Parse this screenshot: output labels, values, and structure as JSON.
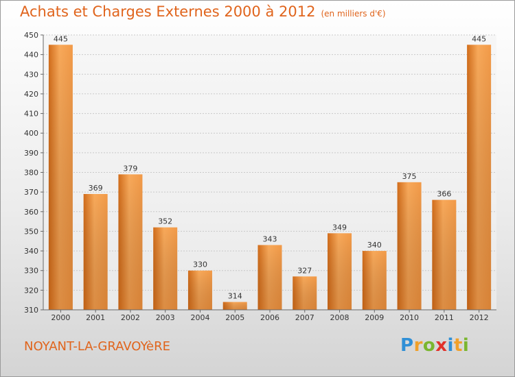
{
  "title": "Achats et Charges Externes 2000 à 2012",
  "subtitle": "(en milliers d'€)",
  "place": "NOYANT-LA-GRAVOYèRE",
  "brand": {
    "name": "Proxiti",
    "letters": [
      {
        "char": "P",
        "color": "#2f8fd6"
      },
      {
        "char": "r",
        "color": "#f0a02a"
      },
      {
        "char": "o",
        "color": "#7ab62f"
      },
      {
        "char": "x",
        "color": "#e2322a"
      },
      {
        "char": "i",
        "color": "#2f8fd6"
      },
      {
        "char": "t",
        "color": "#f0a02a"
      },
      {
        "char": "i",
        "color": "#7ab62f"
      }
    ]
  },
  "colors": {
    "accent": "#e0641c",
    "bar_light": "#f8a95a",
    "bar_dark": "#d26d1b",
    "grid": "#c8c8c8"
  },
  "chart_data": {
    "type": "bar",
    "categories": [
      "2000",
      "2001",
      "2002",
      "2003",
      "2004",
      "2005",
      "2006",
      "2007",
      "2008",
      "2009",
      "2010",
      "2011",
      "2012"
    ],
    "values": [
      445,
      369,
      379,
      352,
      330,
      314,
      343,
      327,
      349,
      340,
      375,
      366,
      445
    ],
    "ylim": [
      310,
      450
    ],
    "yticks": [
      310,
      320,
      330,
      340,
      350,
      360,
      370,
      380,
      390,
      400,
      410,
      420,
      430,
      440,
      450
    ],
    "grid": true,
    "data_labels": true,
    "xlabel": "",
    "ylabel": ""
  }
}
